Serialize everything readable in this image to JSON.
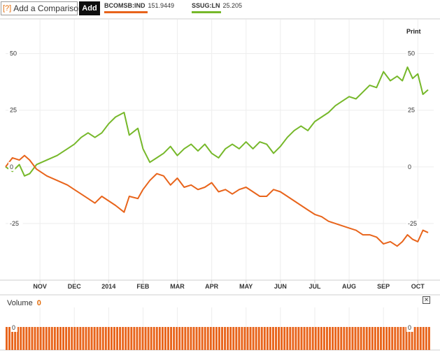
{
  "toolbar": {
    "help_icon": "[?]",
    "comparison_placeholder": "Add a Comparison",
    "add_label": "Add"
  },
  "legend": [
    {
      "symbol": "BCOMSB:IND",
      "value": "151.9449",
      "color": "#e8641b"
    },
    {
      "symbol": "SSUG:LN",
      "value": "25.205",
      "color": "#76b82a"
    }
  ],
  "print_label": "Print",
  "volume": {
    "label": "Volume",
    "value": "0",
    "close_icon": "close-icon",
    "axis_left": "0",
    "axis_right": "0"
  },
  "chart_data": {
    "type": "line",
    "title": "",
    "xlabel": "",
    "ylabel": "",
    "ylim": [
      -50,
      65
    ],
    "y_ticks": [
      "50",
      "25",
      "0",
      "-25"
    ],
    "x_ticks": [
      "NOV",
      "DEC",
      "2014",
      "FEB",
      "MAR",
      "APR",
      "MAY",
      "JUN",
      "JUL",
      "AUG",
      "SEP",
      "OCT"
    ],
    "grid": true,
    "x_range": [
      0,
      12.3
    ],
    "series": [
      {
        "name": "SSUG:LN",
        "color": "#76b82a",
        "x": [
          0,
          0.2,
          0.4,
          0.55,
          0.7,
          0.9,
          1.2,
          1.5,
          1.8,
          2.0,
          2.2,
          2.4,
          2.6,
          2.8,
          3.0,
          3.2,
          3.45,
          3.6,
          3.85,
          4.0,
          4.2,
          4.4,
          4.6,
          4.8,
          5.0,
          5.2,
          5.4,
          5.6,
          5.8,
          6.0,
          6.2,
          6.4,
          6.6,
          6.8,
          7.0,
          7.2,
          7.4,
          7.6,
          7.8,
          8.0,
          8.2,
          8.4,
          8.6,
          8.8,
          9.0,
          9.2,
          9.4,
          9.6,
          9.8,
          10.0,
          10.2,
          10.4,
          10.6,
          10.8,
          11.0,
          11.2,
          11.4,
          11.55,
          11.7,
          11.85,
          12.0,
          12.15,
          12.3
        ],
        "values": [
          0,
          -2,
          1,
          -4,
          -3,
          1,
          3,
          5,
          8,
          10,
          13,
          15,
          13,
          15,
          19,
          22,
          24,
          14,
          17,
          8,
          2,
          4,
          6,
          9,
          5,
          8,
          10,
          7,
          10,
          6,
          4,
          8,
          10,
          8,
          11,
          8,
          11,
          10,
          6,
          9,
          13,
          16,
          18,
          16,
          20,
          22,
          24,
          27,
          29,
          31,
          30,
          33,
          36,
          35,
          42,
          38,
          40,
          38,
          44,
          39,
          41,
          32,
          34
        ]
      },
      {
        "name": "BCOMSB:IND",
        "color": "#e8641b",
        "x": [
          0,
          0.2,
          0.4,
          0.55,
          0.7,
          0.9,
          1.2,
          1.5,
          1.8,
          2.0,
          2.2,
          2.4,
          2.6,
          2.8,
          3.0,
          3.2,
          3.45,
          3.6,
          3.85,
          4.0,
          4.2,
          4.4,
          4.6,
          4.8,
          5.0,
          5.2,
          5.4,
          5.6,
          5.8,
          6.0,
          6.2,
          6.4,
          6.6,
          6.8,
          7.0,
          7.2,
          7.4,
          7.6,
          7.8,
          8.0,
          8.2,
          8.4,
          8.6,
          8.8,
          9.0,
          9.2,
          9.4,
          9.6,
          9.8,
          10.0,
          10.2,
          10.4,
          10.6,
          10.8,
          11.0,
          11.2,
          11.4,
          11.55,
          11.7,
          11.85,
          12.0,
          12.15,
          12.3
        ],
        "values": [
          0,
          4,
          3,
          5,
          3,
          -1,
          -4,
          -6,
          -8,
          -10,
          -12,
          -14,
          -16,
          -13,
          -15,
          -17,
          -20,
          -13,
          -14,
          -10,
          -6,
          -3,
          -4,
          -8,
          -5,
          -9,
          -8,
          -10,
          -9,
          -7,
          -11,
          -10,
          -12,
          -10,
          -9,
          -11,
          -13,
          -13,
          -10,
          -11,
          -13,
          -15,
          -17,
          -19,
          -21,
          -22,
          -24,
          -25,
          -26,
          -27,
          -28,
          -30,
          -30,
          -31,
          -34,
          -33,
          -35,
          -33,
          -30,
          -32,
          -33,
          -28,
          -29
        ]
      }
    ],
    "volume_bars": 150
  }
}
